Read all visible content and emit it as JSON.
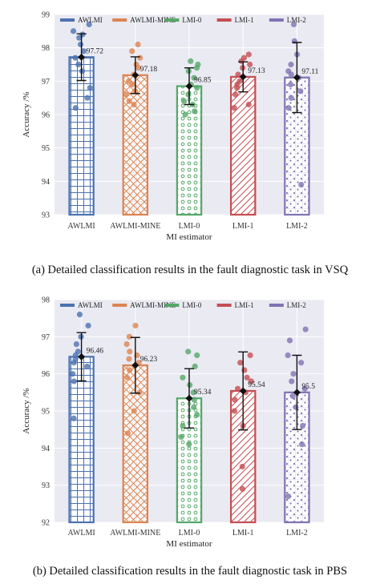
{
  "chart_data": [
    {
      "type": "bar",
      "categories": [
        "AWLMI",
        "AWLMI-MINE",
        "LMI-0",
        "LMI-1",
        "LMI-2"
      ],
      "series": [
        {
          "name": "AWLMI",
          "color": "#4c72b0",
          "hatch": "grid",
          "mean": 97.72,
          "std": 0.7,
          "points": [
            98.7,
            98.5,
            98.4,
            98.3,
            98.1,
            97.9,
            97.7,
            97.5,
            97.3,
            96.8,
            96.5,
            96.2
          ]
        },
        {
          "name": "AWLMI-MINE",
          "color": "#dd8452",
          "hatch": "crosshatch",
          "mean": 97.18,
          "std": 0.55,
          "points": [
            98.1,
            97.9,
            97.7,
            97.5,
            97.4,
            97.2,
            97.0,
            96.9,
            96.7,
            96.6,
            96.4,
            96.3
          ]
        },
        {
          "name": "LMI-0",
          "color": "#55a868",
          "hatch": "circles",
          "mean": 96.85,
          "std": 0.55,
          "points": [
            97.6,
            97.5,
            97.4,
            97.3,
            97.1,
            96.9,
            96.8,
            96.6,
            96.4,
            96.3,
            96.1,
            96.0
          ]
        },
        {
          "name": "LMI-1",
          "color": "#c44e52",
          "hatch": "diagonal",
          "mean": 97.13,
          "std": 0.45,
          "points": [
            97.8,
            97.7,
            97.6,
            97.5,
            97.4,
            97.2,
            97.0,
            96.9,
            96.8,
            96.6,
            96.3,
            96.2
          ]
        },
        {
          "name": "LMI-2",
          "color": "#8172b3",
          "hatch": "dots",
          "mean": 97.11,
          "std": 1.05,
          "points": [
            98.7,
            98.2,
            97.8,
            97.5,
            97.3,
            97.2,
            97.1,
            96.9,
            96.7,
            96.5,
            96.2,
            93.9
          ]
        }
      ],
      "value_labels": [
        "97.72",
        "97.18",
        "96.85",
        "97.13",
        "97.11"
      ],
      "xlabel": "MI estimator",
      "ylabel": "Accuracy /%",
      "ylim": [
        93,
        99
      ],
      "yticks": [
        "93",
        "94",
        "95",
        "96",
        "97",
        "98",
        "99"
      ],
      "grid": true,
      "legend": "top"
    },
    {
      "type": "bar",
      "categories": [
        "AWLMI",
        "AWLMI-MINE",
        "LMI-0",
        "LMI-1",
        "LMI-2"
      ],
      "series": [
        {
          "name": "AWLMI",
          "color": "#4c72b0",
          "hatch": "grid",
          "mean": 96.46,
          "std": 0.65,
          "points": [
            97.6,
            97.3,
            97.0,
            96.8,
            96.6,
            96.5,
            96.4,
            96.3,
            96.2,
            96.0,
            95.8,
            94.8
          ]
        },
        {
          "name": "AWLMI-MINE",
          "color": "#dd8452",
          "hatch": "crosshatch",
          "mean": 96.23,
          "std": 0.75,
          "points": [
            97.3,
            97.0,
            96.8,
            96.6,
            96.5,
            96.4,
            96.3,
            96.1,
            95.9,
            95.5,
            95.0,
            94.4
          ]
        },
        {
          "name": "LMI-0",
          "color": "#55a868",
          "hatch": "circles",
          "mean": 95.34,
          "std": 0.8,
          "points": [
            96.6,
            96.5,
            96.2,
            95.9,
            95.7,
            95.5,
            95.3,
            95.1,
            94.9,
            94.6,
            94.3,
            94.1
          ]
        },
        {
          "name": "LMI-1",
          "color": "#c44e52",
          "hatch": "diagonal",
          "mean": 95.54,
          "std": 1.05,
          "points": [
            96.5,
            96.3,
            96.1,
            95.9,
            95.8,
            95.6,
            95.5,
            95.3,
            95.0,
            94.6,
            93.5,
            92.9
          ]
        },
        {
          "name": "LMI-2",
          "color": "#8172b3",
          "hatch": "dots",
          "mean": 95.5,
          "std": 1.0,
          "points": [
            97.2,
            96.9,
            96.5,
            96.3,
            96.0,
            95.8,
            95.6,
            95.4,
            95.1,
            94.6,
            94.1,
            92.7
          ]
        }
      ],
      "value_labels": [
        "96.46",
        "96.23",
        "95.34",
        "95.54",
        "95.5"
      ],
      "xlabel": "MI estimator",
      "ylabel": "Accuracy /%",
      "ylim": [
        92,
        98
      ],
      "yticks": [
        "92",
        "93",
        "94",
        "95",
        "96",
        "97",
        "98"
      ],
      "grid": true,
      "legend": "top"
    }
  ],
  "captions": {
    "a": "(a) Detailed classification results in the fault diagnostic task in VSQ",
    "b": "(b) Detailed classification results in the fault diagnostic task in PBS"
  }
}
